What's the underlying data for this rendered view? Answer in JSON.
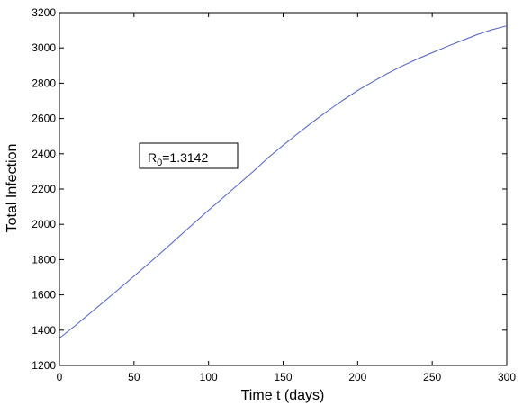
{
  "chart_data": {
    "type": "line",
    "title": "",
    "xlabel": "Time t (days)",
    "ylabel": "Total Infection",
    "xlim": [
      0,
      300
    ],
    "ylim": [
      1200,
      3200
    ],
    "xticks": [
      0,
      50,
      100,
      150,
      200,
      250,
      300
    ],
    "yticks": [
      1200,
      1400,
      1600,
      1800,
      2000,
      2200,
      2400,
      2600,
      2800,
      3000,
      3200
    ],
    "grid": false,
    "series": [
      {
        "color": "#4a5fd0",
        "x": [
          0,
          10,
          20,
          30,
          40,
          50,
          60,
          70,
          80,
          90,
          100,
          110,
          120,
          130,
          140,
          150,
          160,
          170,
          180,
          190,
          200,
          210,
          220,
          230,
          240,
          250,
          260,
          270,
          280,
          290,
          300
        ],
        "y": [
          1355,
          1422,
          1492,
          1563,
          1634,
          1706,
          1779,
          1853,
          1929,
          2005,
          2080,
          2153,
          2227,
          2300,
          2378,
          2448,
          2516,
          2581,
          2644,
          2703,
          2758,
          2808,
          2855,
          2898,
          2937,
          2973,
          3008,
          3042,
          3075,
          3103,
          3125
        ]
      }
    ],
    "annotation": {
      "base": "R",
      "sub": "0",
      "value": "=1.3142",
      "anchor_x": 120,
      "anchor_y": 2382
    }
  }
}
